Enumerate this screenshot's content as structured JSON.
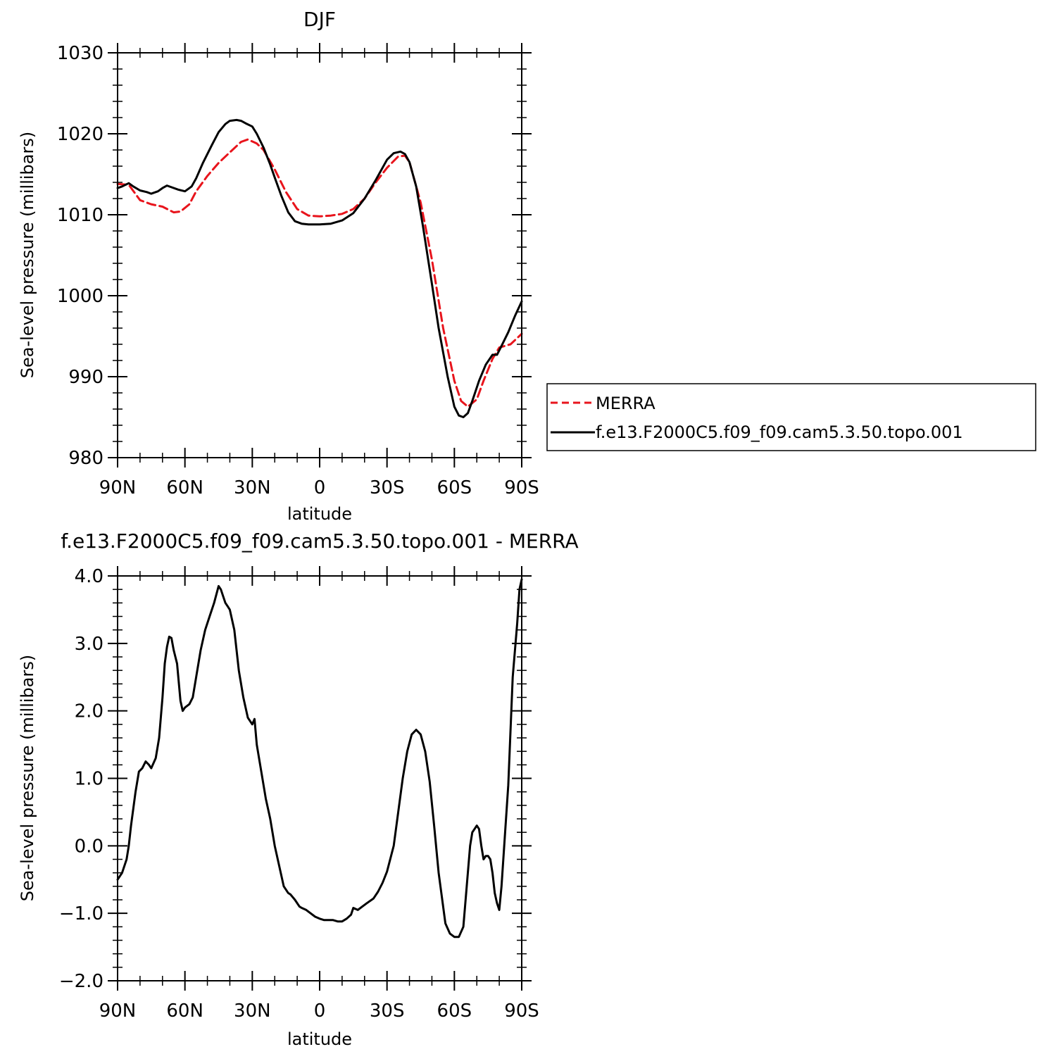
{
  "chart_data": [
    {
      "type": "line",
      "title": "DJF",
      "xlabel": "latitude",
      "ylabel": "Sea-level pressure (millibars)",
      "xlim": [
        90,
        -90
      ],
      "ylim": [
        980,
        1030
      ],
      "xticks": [
        90,
        60,
        30,
        0,
        -30,
        -60,
        -90
      ],
      "xtick_labels": [
        "90N",
        "60N",
        "30N",
        "0",
        "30S",
        "60S",
        "90S"
      ],
      "yticks": [
        980,
        990,
        1000,
        1010,
        1020,
        1030
      ],
      "ytick_labels": [
        "980",
        "990",
        "1000",
        "1010",
        "1020",
        "1030"
      ],
      "legend": "right",
      "series": [
        {
          "name": "MERRA",
          "color": "#e8141c",
          "dash": true,
          "x": [
            90,
            85,
            80,
            75,
            70,
            65,
            62,
            58,
            55,
            50,
            45,
            40,
            35,
            32,
            28,
            25,
            20,
            15,
            10,
            5,
            0,
            -5,
            -10,
            -15,
            -20,
            -25,
            -30,
            -35,
            -38,
            -40,
            -45,
            -50,
            -55,
            -60,
            -63,
            -66,
            -70,
            -73,
            -77,
            -80,
            -85,
            -90
          ],
          "y": [
            1013.8,
            1013.7,
            1011.8,
            1011.3,
            1011,
            1010.3,
            1010.4,
            1011.3,
            1012.9,
            1014.8,
            1016.4,
            1017.7,
            1019,
            1019.3,
            1018.8,
            1018,
            1015.6,
            1012.8,
            1010.7,
            1009.9,
            1009.8,
            1009.9,
            1010.1,
            1010.7,
            1012,
            1014,
            1015.8,
            1017.2,
            1017.3,
            1016.5,
            1011.5,
            1004.5,
            996,
            989.5,
            987,
            986.3,
            987.2,
            989.5,
            992.2,
            993.6,
            994,
            995.3
          ]
        },
        {
          "name": "f.e13.F2000C5.f09_f09.cam5.3.50.topo.001",
          "color": "#000000",
          "dash": false,
          "x": [
            90,
            88,
            85,
            83,
            80,
            77,
            75,
            72,
            70,
            68,
            66,
            63,
            60,
            57,
            55,
            52,
            48,
            45,
            42,
            40,
            37,
            35,
            33,
            30,
            28,
            25,
            22,
            20,
            17,
            14,
            11,
            8,
            5,
            2,
            0,
            -5,
            -10,
            -15,
            -20,
            -25,
            -30,
            -33,
            -36,
            -38,
            -40,
            -43,
            -46,
            -50,
            -53,
            -57,
            -60,
            -62,
            -64,
            -66,
            -68,
            -71,
            -74,
            -77,
            -79,
            -81,
            -84,
            -87,
            -90
          ],
          "y": [
            1013.3,
            1013.5,
            1013.9,
            1013.5,
            1013,
            1012.8,
            1012.6,
            1012.9,
            1013.3,
            1013.6,
            1013.4,
            1013.1,
            1012.9,
            1013.5,
            1014.5,
            1016.4,
            1018.6,
            1020.2,
            1021.2,
            1021.6,
            1021.7,
            1021.6,
            1021.3,
            1020.9,
            1020,
            1018.3,
            1016.2,
            1014.6,
            1012.3,
            1010.3,
            1009.2,
            1008.9,
            1008.8,
            1008.8,
            1008.8,
            1008.9,
            1009.3,
            1010.2,
            1012,
            1014.3,
            1016.8,
            1017.6,
            1017.8,
            1017.5,
            1016.5,
            1013.5,
            1008.6,
            1001.5,
            996,
            990,
            986.3,
            985.2,
            985,
            985.5,
            987,
            989.5,
            991.5,
            992.7,
            992.7,
            993.8,
            995.5,
            997.5,
            999.3
          ]
        }
      ]
    },
    {
      "type": "line",
      "title": "f.e13.F2000C5.f09_f09.cam5.3.50.topo.001  -  MERRA",
      "xlabel": "latitude",
      "ylabel": "Sea-level pressure (millibars)",
      "xlim": [
        90,
        -90
      ],
      "ylim": [
        -2,
        4
      ],
      "xticks": [
        90,
        60,
        30,
        0,
        -30,
        -60,
        -90
      ],
      "xtick_labels": [
        "90N",
        "60N",
        "30N",
        "0",
        "30S",
        "60S",
        "90S"
      ],
      "yticks": [
        -2,
        -1,
        0,
        1,
        2,
        3,
        4
      ],
      "ytick_labels": [
        "-2.0",
        "-1.0",
        "0.0",
        "1.0",
        "2.0",
        "3.0",
        "4.0"
      ],
      "series": [
        {
          "color": "#000000",
          "x": [
            90,
            88,
            86,
            85,
            84,
            82,
            80.5,
            79,
            77.5,
            76,
            75,
            73,
            71.5,
            70,
            69,
            68,
            67,
            66,
            65,
            63.5,
            62,
            61,
            60,
            58,
            56.5,
            55,
            53,
            51,
            49,
            47,
            45,
            44,
            43,
            42,
            41,
            40,
            38,
            37,
            36,
            34,
            32,
            30,
            29,
            28,
            26,
            24,
            22,
            20,
            18,
            16,
            14,
            13,
            11,
            9,
            8,
            6,
            4,
            2,
            0,
            -2,
            -4,
            -6,
            -8,
            -10,
            -12,
            -14,
            -15,
            -17,
            -19,
            -21,
            -24,
            -26,
            -28,
            -30,
            -33,
            -35,
            -37,
            -39,
            -41,
            -43,
            -45,
            -47,
            -49,
            -51,
            -53,
            -56,
            -58,
            -60,
            -62,
            -64,
            -65.5,
            -67,
            -68,
            -69,
            -70,
            -71,
            -72,
            -73,
            -74,
            -75,
            -76,
            -77,
            -78,
            -79,
            -80,
            -81,
            -82,
            -84,
            -86,
            -88,
            -89,
            -90
          ],
          "y": [
            -0.5,
            -0.4,
            -0.2,
            0,
            0.3,
            0.8,
            1.1,
            1.15,
            1.25,
            1.2,
            1.15,
            1.3,
            1.6,
            2.2,
            2.7,
            2.95,
            3.1,
            3.08,
            2.9,
            2.7,
            2.15,
            2,
            2.05,
            2.1,
            2.2,
            2.5,
            2.9,
            3.2,
            3.4,
            3.6,
            3.85,
            3.8,
            3.7,
            3.6,
            3.55,
            3.5,
            3.2,
            2.9,
            2.6,
            2.2,
            1.9,
            1.8,
            1.88,
            1.5,
            1.1,
            0.7,
            0.4,
            0,
            -0.3,
            -0.6,
            -0.7,
            -0.72,
            -0.8,
            -0.9,
            -0.92,
            -0.95,
            -1,
            -1.05,
            -1.08,
            -1.1,
            -1.1,
            -1.1,
            -1.12,
            -1.12,
            -1.08,
            -1.02,
            -0.92,
            -0.95,
            -0.9,
            -0.85,
            -0.78,
            -0.68,
            -0.55,
            -0.38,
            0,
            0.5,
            1,
            1.4,
            1.65,
            1.72,
            1.65,
            1.4,
            0.95,
            0.3,
            -0.4,
            -1.15,
            -1.3,
            -1.35,
            -1.35,
            -1.2,
            -0.6,
            0,
            0.2,
            0.25,
            0.3,
            0.25,
            0,
            -0.2,
            -0.15,
            -0.15,
            -0.2,
            -0.4,
            -0.7,
            -0.85,
            -0.95,
            -0.6,
            -0.1,
            0.9,
            2.5,
            3.3,
            3.8,
            3.95
          ]
        }
      ]
    }
  ]
}
